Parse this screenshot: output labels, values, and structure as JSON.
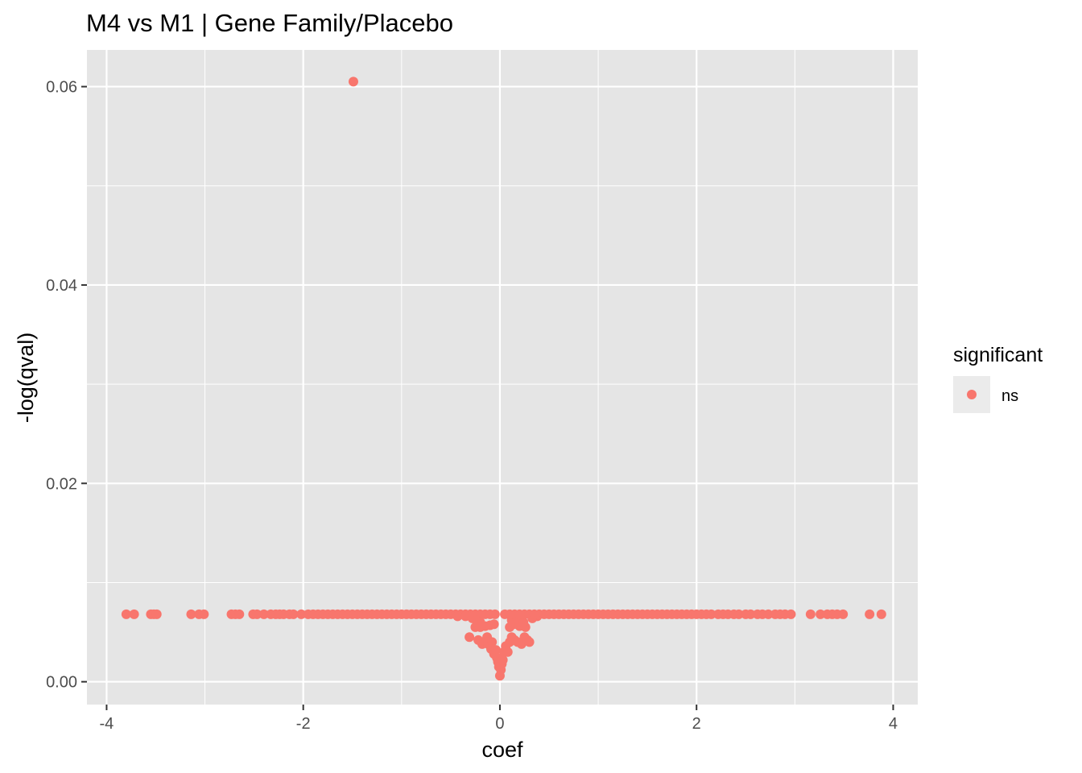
{
  "chart_data": {
    "type": "scatter",
    "title": "M4 vs M1 | Gene Family/Placebo",
    "xlabel": "coef",
    "ylabel": "-log(qval)",
    "xlim": [
      -4.2,
      4.25
    ],
    "ylim": [
      -0.0023,
      0.0637
    ],
    "x_ticks": [
      -4,
      -2,
      0,
      2,
      4
    ],
    "x_tick_labels": [
      "-4",
      "-2",
      "0",
      "2",
      "4"
    ],
    "y_ticks": [
      0.0,
      0.02,
      0.04,
      0.06
    ],
    "y_tick_labels": [
      "0.00",
      "0.02",
      "0.04",
      "0.06"
    ],
    "grid": true,
    "legend": {
      "title": "significant",
      "position": "right",
      "entries": [
        "ns"
      ]
    },
    "colors": {
      "ns": "#F8766D",
      "panel": "#E5E5E5",
      "grid": "#FFFFFF"
    },
    "series": [
      {
        "name": "ns",
        "points": [
          [
            -1.49,
            0.0605
          ],
          [
            -3.8,
            0.0068
          ],
          [
            -3.72,
            0.0068
          ],
          [
            -3.55,
            0.0068
          ],
          [
            -3.52,
            0.0068
          ],
          [
            -3.49,
            0.0068
          ],
          [
            -3.14,
            0.0068
          ],
          [
            -3.06,
            0.0068
          ],
          [
            -3.01,
            0.0068
          ],
          [
            -2.73,
            0.0068
          ],
          [
            -2.69,
            0.0068
          ],
          [
            -2.65,
            0.0068
          ],
          [
            -2.51,
            0.0068
          ],
          [
            -2.47,
            0.0068
          ],
          [
            -2.4,
            0.0068
          ],
          [
            -2.33,
            0.0068
          ],
          [
            -2.28,
            0.0068
          ],
          [
            -2.24,
            0.0068
          ],
          [
            -2.2,
            0.0068
          ],
          [
            -2.14,
            0.0068
          ],
          [
            -2.1,
            0.0068
          ],
          [
            -2.02,
            0.0068
          ],
          [
            -1.95,
            0.0068
          ],
          [
            -1.9,
            0.0068
          ],
          [
            -1.85,
            0.0068
          ],
          [
            -1.8,
            0.0068
          ],
          [
            -1.75,
            0.0068
          ],
          [
            -1.7,
            0.0068
          ],
          [
            -1.65,
            0.0068
          ],
          [
            -1.6,
            0.0068
          ],
          [
            -1.55,
            0.0068
          ],
          [
            -1.5,
            0.0068
          ],
          [
            -1.45,
            0.0068
          ],
          [
            -1.4,
            0.0068
          ],
          [
            -1.35,
            0.0068
          ],
          [
            -1.3,
            0.0068
          ],
          [
            -1.25,
            0.0068
          ],
          [
            -1.2,
            0.0068
          ],
          [
            -1.15,
            0.0068
          ],
          [
            -1.1,
            0.0068
          ],
          [
            -1.05,
            0.0068
          ],
          [
            -1.0,
            0.0068
          ],
          [
            -0.95,
            0.0068
          ],
          [
            -0.9,
            0.0068
          ],
          [
            -0.85,
            0.0068
          ],
          [
            -0.8,
            0.0068
          ],
          [
            -0.75,
            0.0068
          ],
          [
            -0.7,
            0.0068
          ],
          [
            -0.65,
            0.0068
          ],
          [
            -0.6,
            0.0068
          ],
          [
            -0.55,
            0.0068
          ],
          [
            -0.5,
            0.0068
          ],
          [
            -0.45,
            0.0068
          ],
          [
            -0.4,
            0.0068
          ],
          [
            -0.35,
            0.0068
          ],
          [
            -0.3,
            0.0068
          ],
          [
            -0.25,
            0.0068
          ],
          [
            -0.2,
            0.0068
          ],
          [
            -0.15,
            0.0068
          ],
          [
            -0.1,
            0.0068
          ],
          [
            -0.05,
            0.0068
          ],
          [
            -0.43,
            0.0066
          ],
          [
            -0.35,
            0.0066
          ],
          [
            -0.28,
            0.0064
          ],
          [
            -0.24,
            0.0062
          ],
          [
            -0.2,
            0.006
          ],
          [
            -0.25,
            0.0055
          ],
          [
            -0.2,
            0.0055
          ],
          [
            -0.15,
            0.0056
          ],
          [
            -0.1,
            0.0057
          ],
          [
            -0.06,
            0.0058
          ],
          [
            -0.31,
            0.0045
          ],
          [
            -0.22,
            0.0042
          ],
          [
            -0.18,
            0.0038
          ],
          [
            -0.12,
            0.0038
          ],
          [
            -0.08,
            0.004
          ],
          [
            -0.13,
            0.0045
          ],
          [
            -0.09,
            0.0033
          ],
          [
            -0.06,
            0.0028
          ],
          [
            -0.04,
            0.0032
          ],
          [
            -0.03,
            0.0024
          ],
          [
            -0.02,
            0.002
          ],
          [
            -0.01,
            0.0015
          ],
          [
            0.0,
            0.0006
          ],
          [
            0.01,
            0.0012
          ],
          [
            0.02,
            0.0018
          ],
          [
            0.03,
            0.0022
          ],
          [
            0.04,
            0.003
          ],
          [
            0.06,
            0.0036
          ],
          [
            0.08,
            0.003
          ],
          [
            0.1,
            0.004
          ],
          [
            0.12,
            0.0045
          ],
          [
            0.15,
            0.0042
          ],
          [
            0.18,
            0.004
          ],
          [
            0.22,
            0.0038
          ],
          [
            0.25,
            0.0045
          ],
          [
            0.28,
            0.0042
          ],
          [
            0.3,
            0.004
          ],
          [
            0.1,
            0.0055
          ],
          [
            0.14,
            0.0058
          ],
          [
            0.2,
            0.0056
          ],
          [
            0.26,
            0.0055
          ],
          [
            0.12,
            0.0062
          ],
          [
            0.18,
            0.0063
          ],
          [
            0.24,
            0.006
          ],
          [
            0.33,
            0.0064
          ],
          [
            0.38,
            0.0066
          ],
          [
            0.05,
            0.0068
          ],
          [
            0.1,
            0.0068
          ],
          [
            0.15,
            0.0068
          ],
          [
            0.2,
            0.0068
          ],
          [
            0.25,
            0.0068
          ],
          [
            0.3,
            0.0068
          ],
          [
            0.35,
            0.0068
          ],
          [
            0.4,
            0.0068
          ],
          [
            0.45,
            0.0068
          ],
          [
            0.5,
            0.0068
          ],
          [
            0.55,
            0.0068
          ],
          [
            0.6,
            0.0068
          ],
          [
            0.65,
            0.0068
          ],
          [
            0.7,
            0.0068
          ],
          [
            0.75,
            0.0068
          ],
          [
            0.8,
            0.0068
          ],
          [
            0.85,
            0.0068
          ],
          [
            0.9,
            0.0068
          ],
          [
            0.95,
            0.0068
          ],
          [
            1.0,
            0.0068
          ],
          [
            1.05,
            0.0068
          ],
          [
            1.1,
            0.0068
          ],
          [
            1.15,
            0.0068
          ],
          [
            1.2,
            0.0068
          ],
          [
            1.25,
            0.0068
          ],
          [
            1.3,
            0.0068
          ],
          [
            1.35,
            0.0068
          ],
          [
            1.4,
            0.0068
          ],
          [
            1.45,
            0.0068
          ],
          [
            1.5,
            0.0068
          ],
          [
            1.55,
            0.0068
          ],
          [
            1.6,
            0.0068
          ],
          [
            1.65,
            0.0068
          ],
          [
            1.7,
            0.0068
          ],
          [
            1.75,
            0.0068
          ],
          [
            1.8,
            0.0068
          ],
          [
            1.85,
            0.0068
          ],
          [
            1.9,
            0.0068
          ],
          [
            1.95,
            0.0068
          ],
          [
            2.0,
            0.0068
          ],
          [
            2.05,
            0.0068
          ],
          [
            2.1,
            0.0068
          ],
          [
            2.15,
            0.0068
          ],
          [
            2.22,
            0.0068
          ],
          [
            2.27,
            0.0068
          ],
          [
            2.32,
            0.0068
          ],
          [
            2.38,
            0.0068
          ],
          [
            2.43,
            0.0068
          ],
          [
            2.5,
            0.0068
          ],
          [
            2.55,
            0.0068
          ],
          [
            2.62,
            0.0068
          ],
          [
            2.67,
            0.0068
          ],
          [
            2.73,
            0.0068
          ],
          [
            2.8,
            0.0068
          ],
          [
            2.85,
            0.0068
          ],
          [
            2.9,
            0.0068
          ],
          [
            2.96,
            0.0068
          ],
          [
            3.16,
            0.0068
          ],
          [
            3.26,
            0.0068
          ],
          [
            3.33,
            0.0068
          ],
          [
            3.38,
            0.0068
          ],
          [
            3.43,
            0.0068
          ],
          [
            3.49,
            0.0068
          ],
          [
            3.76,
            0.0068
          ],
          [
            3.88,
            0.0068
          ]
        ]
      }
    ]
  }
}
